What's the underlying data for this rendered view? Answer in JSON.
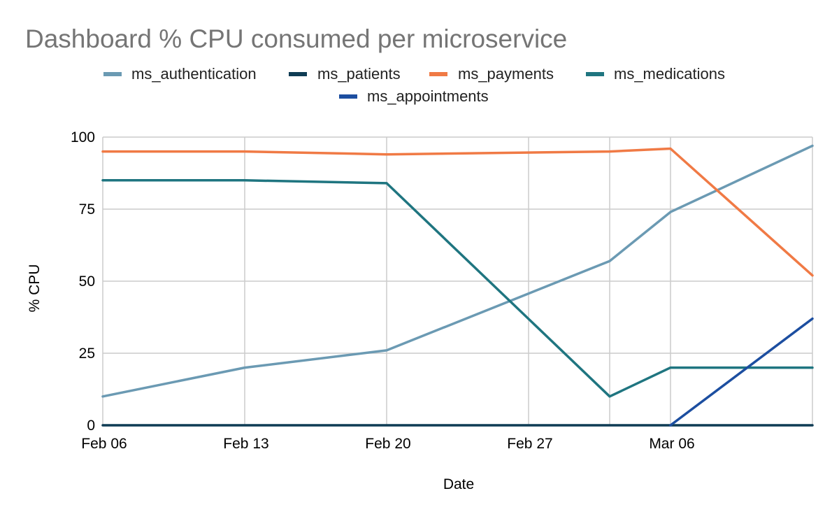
{
  "chart_data": {
    "type": "line",
    "title": "Dashboard % CPU consumed per microservice",
    "xlabel": "Date",
    "ylabel": "% CPU",
    "ylim": [
      0,
      100
    ],
    "yticks": [
      0,
      25,
      50,
      75,
      100
    ],
    "xlim": [
      0,
      35
    ],
    "xticks": [
      {
        "label": "Feb 06",
        "x": 0
      },
      {
        "label": "Feb 13",
        "x": 7
      },
      {
        "label": "Feb 20",
        "x": 14
      },
      {
        "label": "Feb 27",
        "x": 21
      },
      {
        "label": "Mar 06",
        "x": 28
      }
    ],
    "x_grid_extra": [
      25
    ],
    "grid": true,
    "legend_position": "top",
    "series": [
      {
        "name": "ms_authentication",
        "color": "#6b9ab3",
        "x": [
          0,
          7,
          14,
          25,
          28,
          35
        ],
        "values": [
          10,
          20,
          26,
          57,
          74,
          97
        ]
      },
      {
        "name": "ms_patients",
        "color": "#0f3c54",
        "x": [
          0,
          35
        ],
        "values": [
          0,
          0
        ]
      },
      {
        "name": "ms_payments",
        "color": "#f07a45",
        "x": [
          0,
          7,
          14,
          25,
          28,
          35
        ],
        "values": [
          95,
          95,
          94,
          95,
          96,
          52
        ]
      },
      {
        "name": "ms_medications",
        "color": "#1f7580",
        "x": [
          0,
          7,
          14,
          25,
          28,
          35
        ],
        "values": [
          85,
          85,
          84,
          10,
          20,
          20
        ]
      },
      {
        "name": "ms_appointments",
        "color": "#1c4ea0",
        "x": [
          28,
          35
        ],
        "values": [
          0,
          37
        ]
      }
    ]
  }
}
